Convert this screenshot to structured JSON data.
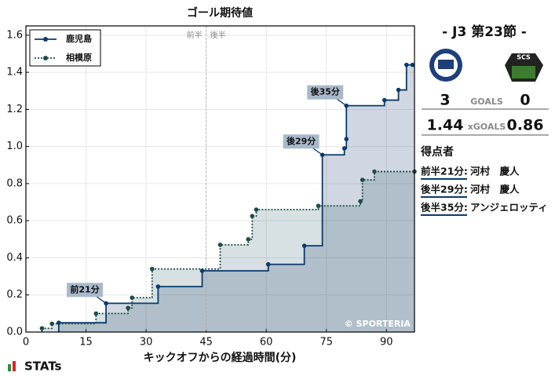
{
  "chart_data": {
    "type": "step",
    "title": "ゴール期待値",
    "xlabel": "キックオフからの経過時間(分)",
    "xlim": [
      0,
      97
    ],
    "xticks": [
      0,
      15,
      30,
      45,
      60,
      75,
      90
    ],
    "ylim": [
      0,
      1.65
    ],
    "yticks": [
      {
        "value": 0,
        "label": "0.0"
      },
      0.2,
      0.4,
      0.6,
      0.8,
      {
        "value": 1,
        "label": "1.0"
      },
      1.2,
      1.4,
      1.6
    ],
    "grid": true,
    "legend": "upper left",
    "halftime": {
      "x": 45,
      "first": "前半",
      "second": "後半"
    },
    "watermark": "© SPORTERIA",
    "series": [
      {
        "name": "鹿児島",
        "color": "#0b3a6b",
        "style": "solid",
        "x": [
          8.2,
          20,
          33,
          44,
          60.5,
          69.5,
          74,
          79.5,
          80,
          80,
          89.5,
          93,
          95,
          96.5
        ],
        "values": [
          0.05,
          0.155,
          0.245,
          0.33,
          0.365,
          0.465,
          0.955,
          0.99,
          1.04,
          1.22,
          1.25,
          1.305,
          1.44,
          1.44
        ]
      },
      {
        "name": "相模原",
        "color": "#1d4d48",
        "style": "dotted",
        "x": [
          4,
          6.5,
          17.5,
          25.5,
          26.5,
          31.5,
          48.5,
          55.5,
          56.5,
          57.5,
          73,
          83.5,
          84,
          87,
          97
        ],
        "values": [
          0.02,
          0.045,
          0.1,
          0.13,
          0.185,
          0.34,
          0.47,
          0.5,
          0.625,
          0.66,
          0.68,
          0.705,
          0.82,
          0.865,
          0.865
        ]
      }
    ],
    "annotations": [
      {
        "text": "前21分",
        "x": 20,
        "y": 0.155
      },
      {
        "text": "後29分",
        "x": 74,
        "y": 0.955
      },
      {
        "text": "後35分",
        "x": 80,
        "y": 1.22
      }
    ]
  },
  "panel": {
    "round": "- J3 第23節 -",
    "away_logo_text": "SCS",
    "home_goals": "3",
    "goals_label": "GOALS",
    "away_goals": "0",
    "home_xg": "1.44",
    "xg_label": "xGOALS",
    "away_xg": "0.86",
    "scorers_title": "得点者",
    "scorers": [
      {
        "time": "前半21分:",
        "name": "河村　慶人"
      },
      {
        "time": "後半29分:",
        "name": "河村　慶人"
      },
      {
        "time": "後半35分:",
        "name": "アンジェロッティ"
      }
    ]
  },
  "brand": "STATs"
}
